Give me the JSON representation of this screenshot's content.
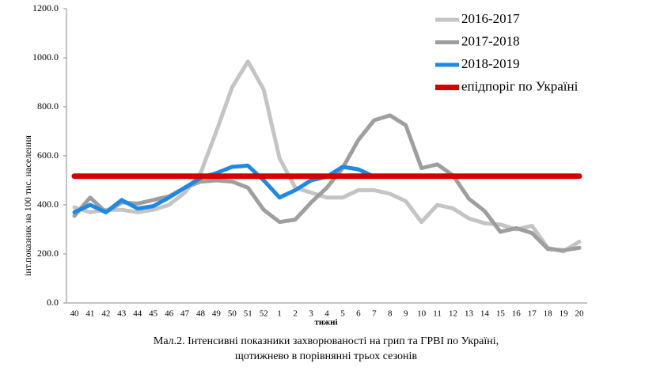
{
  "chart_data": {
    "type": "line",
    "y_label": "інт.показник на 100 тис. населення",
    "x_label": "тижні",
    "caption": [
      "Мал.2. Інтенсивні показники захворюваності на грип та ГРВІ по Україні,",
      "щотижнево в порівнянні трьох сезонів"
    ],
    "categories": [
      "40",
      "41",
      "42",
      "43",
      "44",
      "45",
      "46",
      "47",
      "48",
      "49",
      "50",
      "51",
      "52",
      "1",
      "2",
      "3",
      "4",
      "5",
      "6",
      "7",
      "8",
      "9",
      "10",
      "11",
      "12",
      "13",
      "14",
      "15",
      "16",
      "17",
      "18",
      "19",
      "20"
    ],
    "ylim": [
      0,
      1200
    ],
    "yticks": [
      {
        "value": 0,
        "label": "0.0"
      },
      {
        "value": 200,
        "label": "200.0"
      },
      {
        "value": 400,
        "label": "400.0"
      },
      {
        "value": 600,
        "label": "600.0"
      },
      {
        "value": 800,
        "label": "800.0"
      },
      {
        "value": 1000,
        "label": "1000.0"
      },
      {
        "value": 1200,
        "label": "1200.0"
      }
    ],
    "series": [
      {
        "name": "2016-2017",
        "color": "#c4c4c4",
        "values": [
          390,
          370,
          380,
          380,
          370,
          380,
          400,
          450,
          530,
          700,
          880,
          985,
          870,
          590,
          470,
          450,
          430,
          430,
          460,
          460,
          445,
          415,
          330,
          400,
          385,
          345,
          325,
          320,
          300,
          315,
          225,
          210,
          250
        ]
      },
      {
        "name": "2017-2018",
        "color": "#9e9e9e",
        "values": [
          355,
          430,
          370,
          410,
          405,
          420,
          435,
          470,
          495,
          500,
          495,
          470,
          380,
          330,
          340,
          410,
          470,
          550,
          665,
          745,
          765,
          725,
          550,
          565,
          520,
          425,
          375,
          290,
          305,
          285,
          220,
          215,
          225
        ]
      },
      {
        "name": "2018-2019",
        "color": "#1e88e5",
        "values": [
          370,
          400,
          370,
          420,
          385,
          395,
          430,
          470,
          510,
          530,
          555,
          560,
          500,
          430,
          460,
          500,
          515,
          555,
          545,
          515,
          null,
          null,
          null,
          null,
          null,
          null,
          null,
          null,
          null,
          null,
          null,
          null,
          null
        ]
      },
      {
        "name": "епідпоріг по Україні",
        "color": "#d40000",
        "values": [
          517,
          517,
          517,
          517,
          517,
          517,
          517,
          517,
          517,
          517,
          517,
          517,
          517,
          517,
          517,
          517,
          517,
          517,
          517,
          517,
          517,
          517,
          517,
          517,
          517,
          517,
          517,
          517,
          517,
          517,
          517,
          517,
          517
        ]
      }
    ]
  }
}
